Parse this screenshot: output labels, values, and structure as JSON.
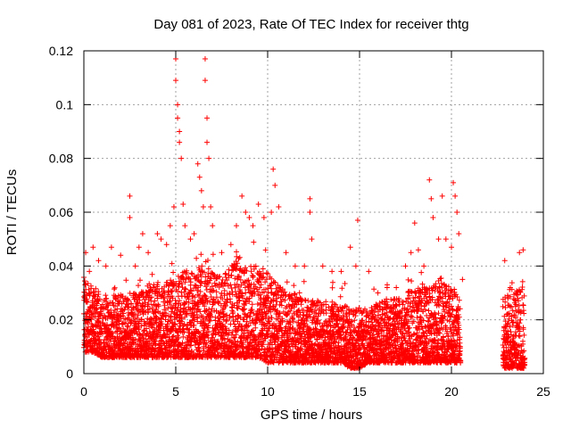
{
  "chart_data": {
    "type": "scatter",
    "title": "Day 081 of 2023, Rate Of TEC Index for receiver thtg",
    "xlabel": "GPS time / hours",
    "ylabel": "ROTI / TECUs",
    "xlim": [
      0,
      25
    ],
    "ylim": [
      0,
      0.12
    ],
    "x_ticks": [
      0,
      5,
      10,
      15,
      20,
      25
    ],
    "y_ticks": [
      0,
      0.02,
      0.04,
      0.06,
      0.08,
      0.1,
      0.12
    ],
    "x_tick_labels": [
      "0",
      "5",
      "10",
      "15",
      "20",
      "25"
    ],
    "y_tick_labels": [
      "0",
      "0.02",
      "0.04",
      "0.06",
      "0.08",
      "0.1",
      "0.12"
    ],
    "grid": true,
    "marker": "plus",
    "color": "#ff0000",
    "series": [
      {
        "name": "",
        "points": [
          [
            0.1,
            0.045
          ],
          [
            0.3,
            0.038
          ],
          [
            0.5,
            0.047
          ],
          [
            0.8,
            0.042
          ],
          [
            1.2,
            0.04
          ],
          [
            1.5,
            0.047
          ],
          [
            2.0,
            0.044
          ],
          [
            2.5,
            0.066
          ],
          [
            2.5,
            0.058
          ],
          [
            2.8,
            0.04
          ],
          [
            3.0,
            0.047
          ],
          [
            3.2,
            0.052
          ],
          [
            3.5,
            0.045
          ],
          [
            4.0,
            0.052
          ],
          [
            4.2,
            0.05
          ],
          [
            4.5,
            0.048
          ],
          [
            4.7,
            0.055
          ],
          [
            4.9,
            0.062
          ],
          [
            5.0,
            0.117
          ],
          [
            5.0,
            0.109
          ],
          [
            5.1,
            0.1
          ],
          [
            5.1,
            0.095
          ],
          [
            5.2,
            0.09
          ],
          [
            5.2,
            0.086
          ],
          [
            5.3,
            0.08
          ],
          [
            5.4,
            0.063
          ],
          [
            5.5,
            0.055
          ],
          [
            5.8,
            0.05
          ],
          [
            6.0,
            0.052
          ],
          [
            6.2,
            0.078
          ],
          [
            6.3,
            0.073
          ],
          [
            6.4,
            0.068
          ],
          [
            6.5,
            0.062
          ],
          [
            6.6,
            0.117
          ],
          [
            6.6,
            0.109
          ],
          [
            6.7,
            0.095
          ],
          [
            6.7,
            0.086
          ],
          [
            6.8,
            0.08
          ],
          [
            6.9,
            0.062
          ],
          [
            7.0,
            0.055
          ],
          [
            7.5,
            0.045
          ],
          [
            8.0,
            0.048
          ],
          [
            8.3,
            0.055
          ],
          [
            8.6,
            0.066
          ],
          [
            8.8,
            0.06
          ],
          [
            9.0,
            0.058
          ],
          [
            9.2,
            0.055
          ],
          [
            9.5,
            0.063
          ],
          [
            9.8,
            0.058
          ],
          [
            10.2,
            0.06
          ],
          [
            10.3,
            0.076
          ],
          [
            10.4,
            0.07
          ],
          [
            10.6,
            0.062
          ],
          [
            11.0,
            0.045
          ],
          [
            11.5,
            0.04
          ],
          [
            12.0,
            0.04
          ],
          [
            12.3,
            0.065
          ],
          [
            12.3,
            0.06
          ],
          [
            12.4,
            0.05
          ],
          [
            13.0,
            0.04
          ],
          [
            13.5,
            0.038
          ],
          [
            14.0,
            0.038
          ],
          [
            14.5,
            0.047
          ],
          [
            14.8,
            0.04
          ],
          [
            14.9,
            0.057
          ],
          [
            15.5,
            0.038
          ],
          [
            16.0,
            0.03
          ],
          [
            16.5,
            0.032
          ],
          [
            17.0,
            0.032
          ],
          [
            17.5,
            0.04
          ],
          [
            17.8,
            0.045
          ],
          [
            18.0,
            0.056
          ],
          [
            18.2,
            0.046
          ],
          [
            18.5,
            0.04
          ],
          [
            18.8,
            0.072
          ],
          [
            18.9,
            0.065
          ],
          [
            19.0,
            0.058
          ],
          [
            19.3,
            0.05
          ],
          [
            19.5,
            0.066
          ],
          [
            19.7,
            0.05
          ],
          [
            20.0,
            0.047
          ],
          [
            20.1,
            0.071
          ],
          [
            20.2,
            0.066
          ],
          [
            20.3,
            0.06
          ],
          [
            20.4,
            0.052
          ],
          [
            20.6,
            0.035
          ],
          [
            22.9,
            0.042
          ],
          [
            23.2,
            0.032
          ],
          [
            23.5,
            0.03
          ],
          [
            23.7,
            0.045
          ],
          [
            23.9,
            0.046
          ]
        ]
      }
    ],
    "envelope": {
      "description_free": true,
      "x": [
        0,
        0.5,
        1,
        1.5,
        2,
        2.5,
        3,
        3.5,
        4,
        4.5,
        5,
        5.5,
        6,
        6.5,
        7,
        7.5,
        8,
        8.5,
        9,
        9.5,
        10,
        10.5,
        11,
        11.5,
        12,
        12.5,
        13,
        13.5,
        14,
        14.5,
        15,
        15.5,
        16,
        16.5,
        17,
        17.5,
        18,
        18.5,
        19,
        19.5,
        20,
        20.5,
        22.8,
        23.2,
        23.6,
        24
      ],
      "upper": [
        0.036,
        0.032,
        0.03,
        0.028,
        0.03,
        0.03,
        0.03,
        0.032,
        0.034,
        0.034,
        0.036,
        0.038,
        0.04,
        0.04,
        0.038,
        0.036,
        0.04,
        0.044,
        0.042,
        0.04,
        0.038,
        0.034,
        0.03,
        0.03,
        0.028,
        0.028,
        0.026,
        0.026,
        0.026,
        0.026,
        0.024,
        0.024,
        0.026,
        0.028,
        0.028,
        0.03,
        0.032,
        0.032,
        0.034,
        0.034,
        0.032,
        0.03,
        0.028,
        0.03,
        0.032,
        0.036
      ],
      "lower": [
        0.008,
        0.008,
        0.006,
        0.006,
        0.006,
        0.006,
        0.006,
        0.006,
        0.006,
        0.006,
        0.006,
        0.006,
        0.006,
        0.006,
        0.006,
        0.006,
        0.006,
        0.006,
        0.006,
        0.006,
        0.004,
        0.004,
        0.004,
        0.004,
        0.004,
        0.004,
        0.004,
        0.004,
        0.004,
        0.002,
        0.002,
        0.004,
        0.004,
        0.004,
        0.004,
        0.004,
        0.004,
        0.004,
        0.004,
        0.004,
        0.004,
        0.004,
        0.002,
        0.002,
        0.002,
        0.002
      ]
    }
  }
}
